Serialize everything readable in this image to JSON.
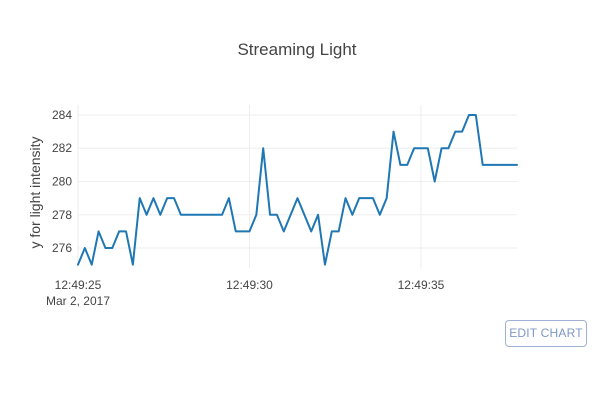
{
  "chart_data": {
    "type": "line",
    "title": "Streaming Light",
    "xlabel": "",
    "ylabel": "y for light intensity",
    "x_axis": {
      "ticks": [
        {
          "time": "12:49:25",
          "label": "12:49:25",
          "sublabel": "Mar 2, 2017"
        },
        {
          "time": "12:49:30",
          "label": "12:49:30",
          "sublabel": ""
        },
        {
          "time": "12:49:35",
          "label": "12:49:35",
          "sublabel": ""
        }
      ],
      "range": [
        "12:49:25",
        "12:49:37.8"
      ]
    },
    "y_axis": {
      "ticks": [
        276,
        278,
        280,
        282,
        284
      ],
      "range": [
        274.8,
        284.6
      ]
    },
    "grid": true,
    "legend": "none",
    "series": [
      {
        "color": "#1f77b4",
        "x": [
          "12:49:25.0",
          "12:49:25.2",
          "12:49:25.4",
          "12:49:25.6",
          "12:49:25.8",
          "12:49:26.0",
          "12:49:26.2",
          "12:49:26.4",
          "12:49:26.6",
          "12:49:26.8",
          "12:49:27.0",
          "12:49:27.2",
          "12:49:27.4",
          "12:49:27.6",
          "12:49:27.8",
          "12:49:28.0",
          "12:49:28.2",
          "12:49:28.4",
          "12:49:28.6",
          "12:49:28.8",
          "12:49:29.0",
          "12:49:29.2",
          "12:49:29.4",
          "12:49:29.6",
          "12:49:29.8",
          "12:49:30.0",
          "12:49:30.2",
          "12:49:30.4",
          "12:49:30.6",
          "12:49:30.8",
          "12:49:31.0",
          "12:49:31.2",
          "12:49:31.4",
          "12:49:31.6",
          "12:49:31.8",
          "12:49:32.0",
          "12:49:32.2",
          "12:49:32.4",
          "12:49:32.6",
          "12:49:32.8",
          "12:49:33.0",
          "12:49:33.2",
          "12:49:33.4",
          "12:49:33.6",
          "12:49:33.8",
          "12:49:34.0",
          "12:49:34.2",
          "12:49:34.4",
          "12:49:34.6",
          "12:49:34.8",
          "12:49:35.0",
          "12:49:35.2",
          "12:49:35.4",
          "12:49:35.6",
          "12:49:35.8",
          "12:49:36.0",
          "12:49:36.2",
          "12:49:36.4",
          "12:49:36.6",
          "12:49:36.8",
          "12:49:37.0",
          "12:49:37.2",
          "12:49:37.4",
          "12:49:37.6",
          "12:49:37.8"
        ],
        "values": [
          275,
          276,
          275,
          277,
          276,
          276,
          277,
          277,
          275,
          279,
          278,
          279,
          278,
          279,
          279,
          278,
          278,
          278,
          278,
          278,
          278,
          278,
          279,
          277,
          277,
          277,
          278,
          282,
          278,
          278,
          277,
          278,
          279,
          278,
          277,
          278,
          275,
          277,
          277,
          279,
          278,
          279,
          279,
          279,
          278,
          279,
          283,
          281,
          281,
          282,
          282,
          282,
          280,
          282,
          282,
          283,
          283,
          284,
          284,
          281,
          281,
          281,
          281,
          281,
          281
        ]
      }
    ]
  },
  "controls": {
    "edit_chart_label": "EDIT CHART"
  }
}
